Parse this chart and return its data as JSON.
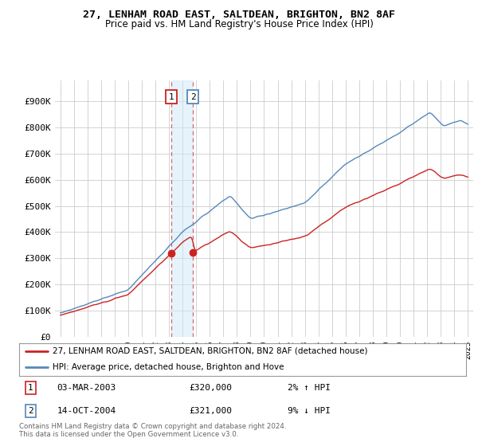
{
  "title": "27, LENHAM ROAD EAST, SALTDEAN, BRIGHTON, BN2 8AF",
  "subtitle": "Price paid vs. HM Land Registry's House Price Index (HPI)",
  "legend_label_1": "27, LENHAM ROAD EAST, SALTDEAN, BRIGHTON, BN2 8AF (detached house)",
  "legend_label_2": "HPI: Average price, detached house, Brighton and Hove",
  "transaction_1": {
    "label": "1",
    "date": "03-MAR-2003",
    "price": 320000,
    "pct": "2%",
    "dir": "↑"
  },
  "transaction_2": {
    "label": "2",
    "date": "14-OCT-2004",
    "price": 321000,
    "pct": "9%",
    "dir": "↓"
  },
  "footer": "Contains HM Land Registry data © Crown copyright and database right 2024.\nThis data is licensed under the Open Government Licence v3.0.",
  "hpi_color": "#5588bb",
  "price_color": "#cc2222",
  "marker_color": "#cc2222",
  "background_color": "#ffffff",
  "yticks": [
    0,
    100000,
    200000,
    300000,
    400000,
    500000,
    600000,
    700000,
    800000,
    900000
  ],
  "t1_year": 2003.167,
  "t2_year": 2004.75,
  "t1_price": 320000,
  "t2_price": 321000
}
